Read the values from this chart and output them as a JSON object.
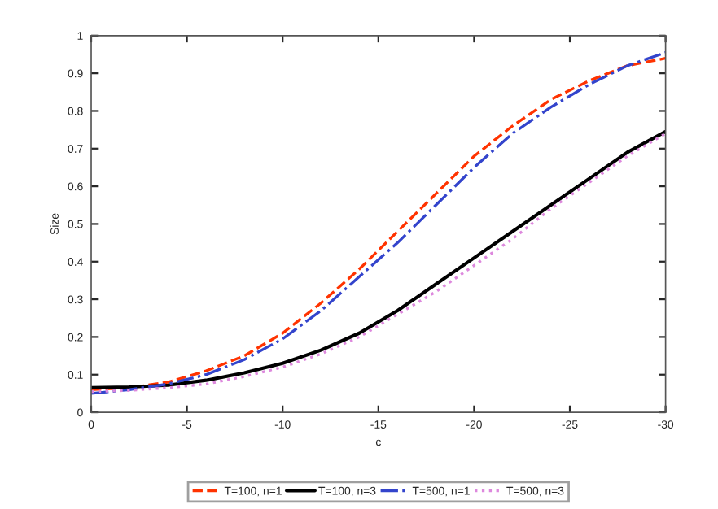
{
  "chart_data": {
    "type": "line",
    "xlabel": "c",
    "ylabel": "Size",
    "x": [
      0,
      -2,
      -4,
      -6,
      -8,
      -10,
      -12,
      -14,
      -16,
      -18,
      -20,
      -22,
      -24,
      -26,
      -28,
      -30
    ],
    "series": [
      {
        "name": "T=100, n=1",
        "color": "#ff3300",
        "line_style": "dashed",
        "values": [
          0.06,
          0.065,
          0.08,
          0.11,
          0.15,
          0.21,
          0.29,
          0.38,
          0.48,
          0.58,
          0.68,
          0.76,
          0.83,
          0.88,
          0.92,
          0.94
        ]
      },
      {
        "name": "T=100, n=3",
        "color": "#000000",
        "line_style": "solid",
        "values": [
          0.065,
          0.067,
          0.072,
          0.085,
          0.105,
          0.13,
          0.165,
          0.21,
          0.27,
          0.34,
          0.41,
          0.48,
          0.55,
          0.62,
          0.69,
          0.745
        ]
      },
      {
        "name": "T=500, n=1",
        "color": "#3344cc",
        "line_style": "dashdot",
        "values": [
          0.05,
          0.06,
          0.075,
          0.1,
          0.14,
          0.195,
          0.27,
          0.36,
          0.45,
          0.55,
          0.65,
          0.74,
          0.81,
          0.87,
          0.92,
          0.955
        ]
      },
      {
        "name": "T=500, n=3",
        "color": "#dd88dd",
        "line_style": "dotted",
        "values": [
          0.055,
          0.058,
          0.065,
          0.075,
          0.095,
          0.12,
          0.155,
          0.2,
          0.26,
          0.32,
          0.39,
          0.46,
          0.54,
          0.61,
          0.68,
          0.74
        ]
      }
    ],
    "xlim": [
      0,
      -30
    ],
    "xticks": [
      0,
      {
        "value": -5,
        "label": "-5"
      },
      {
        "value": -10,
        "label": "-10"
      },
      {
        "value": -15,
        "label": "-15"
      },
      {
        "value": -20,
        "label": "-20"
      },
      {
        "value": -25,
        "label": "-25"
      },
      {
        "value": -30,
        "label": "-30"
      }
    ],
    "ylim": [
      0,
      1
    ],
    "yticks": [
      0,
      0.1,
      0.2,
      0.3,
      0.4,
      0.5,
      0.6,
      0.7,
      0.8,
      0.9,
      1
    ],
    "grid": false,
    "legend": "bottom"
  }
}
